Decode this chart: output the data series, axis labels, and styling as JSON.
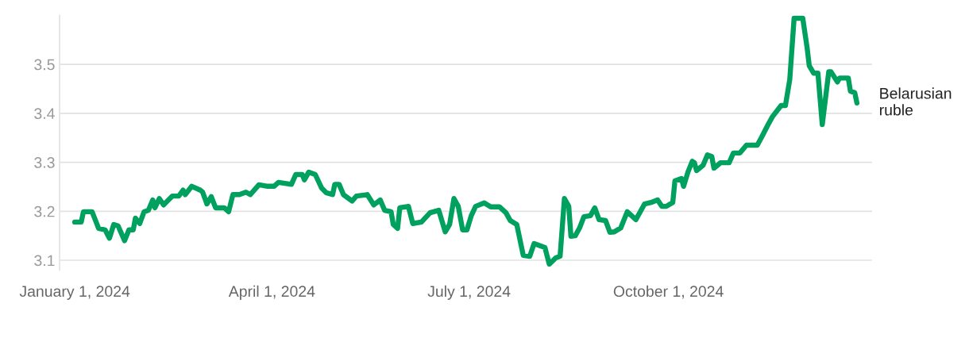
{
  "chart_data": {
    "type": "line",
    "xlim": [
      "2023-12-25",
      "2025-01-03"
    ],
    "xticks": [
      {
        "value": "2024-01-01",
        "label": "January 1, 2024"
      },
      {
        "value": "2024-04-01",
        "label": "April 1, 2024"
      },
      {
        "value": "2024-07-01",
        "label": "July 1, 2024"
      },
      {
        "value": "2024-10-01",
        "label": "October 1, 2024"
      }
    ],
    "ylim": [
      3.08,
      3.6
    ],
    "yticks": [
      3.1,
      3.2,
      3.3,
      3.4,
      3.5
    ],
    "grid": "y",
    "legend": false,
    "line_style": "solid",
    "marker": "none",
    "series": [
      {
        "name": "Belarusian ruble",
        "color": "#00a05e",
        "x": [
          "2024-01-01",
          "2024-01-04",
          "2024-01-05",
          "2024-01-09",
          "2024-01-12",
          "2024-01-15",
          "2024-01-17",
          "2024-01-19",
          "2024-01-21",
          "2024-01-24",
          "2024-01-26",
          "2024-01-28",
          "2024-01-29",
          "2024-01-31",
          "2024-02-02",
          "2024-02-04",
          "2024-02-06",
          "2024-02-07",
          "2024-02-09",
          "2024-02-11",
          "2024-02-15",
          "2024-02-18",
          "2024-02-20",
          "2024-02-21",
          "2024-02-24",
          "2024-02-28",
          "2024-02-29",
          "2024-03-02",
          "2024-03-04",
          "2024-03-06",
          "2024-03-10",
          "2024-03-12",
          "2024-03-14",
          "2024-03-17",
          "2024-03-20",
          "2024-03-22",
          "2024-03-26",
          "2024-03-30",
          "2024-04-02",
          "2024-04-04",
          "2024-04-10",
          "2024-04-12",
          "2024-04-15",
          "2024-04-16",
          "2024-04-18",
          "2024-04-21",
          "2024-04-24",
          "2024-04-26",
          "2024-04-29",
          "2024-04-30",
          "2024-05-02",
          "2024-05-04",
          "2024-05-08",
          "2024-05-10",
          "2024-05-15",
          "2024-05-18",
          "2024-05-21",
          "2024-05-23",
          "2024-05-26",
          "2024-05-27",
          "2024-05-29",
          "2024-05-30",
          "2024-06-03",
          "2024-06-05",
          "2024-06-09",
          "2024-06-13",
          "2024-06-17",
          "2024-06-20",
          "2024-06-22",
          "2024-06-24",
          "2024-06-26",
          "2024-06-28",
          "2024-06-30",
          "2024-07-02",
          "2024-07-04",
          "2024-07-08",
          "2024-07-11",
          "2024-07-15",
          "2024-07-18",
          "2024-07-20",
          "2024-07-23",
          "2024-07-26",
          "2024-07-29",
          "2024-07-31",
          "2024-08-05",
          "2024-08-07",
          "2024-08-10",
          "2024-08-12",
          "2024-08-14",
          "2024-08-16",
          "2024-08-17",
          "2024-08-19",
          "2024-08-21",
          "2024-08-23",
          "2024-08-26",
          "2024-08-28",
          "2024-08-30",
          "2024-09-02",
          "2024-09-04",
          "2024-09-06",
          "2024-09-09",
          "2024-09-12",
          "2024-09-16",
          "2024-09-20",
          "2024-09-23",
          "2024-09-26",
          "2024-09-28",
          "2024-09-30",
          "2024-10-03",
          "2024-10-04",
          "2024-10-07",
          "2024-10-08",
          "2024-10-10",
          "2024-10-12",
          "2024-10-13",
          "2024-10-14",
          "2024-10-17",
          "2024-10-19",
          "2024-10-21",
          "2024-10-22",
          "2024-10-25",
          "2024-10-29",
          "2024-10-31",
          "2024-11-03",
          "2024-11-06",
          "2024-11-11",
          "2024-11-13",
          "2024-11-16",
          "2024-11-18",
          "2024-11-22",
          "2024-11-24",
          "2024-11-26",
          "2024-11-28",
          "2024-12-02",
          "2024-12-04",
          "2024-12-05",
          "2024-12-07",
          "2024-12-09",
          "2024-12-11",
          "2024-12-14",
          "2024-12-15",
          "2024-12-18",
          "2024-12-19",
          "2024-12-23",
          "2024-12-24",
          "2024-12-26",
          "2024-12-27"
        ],
        "values": [
          3.178,
          3.178,
          3.199,
          3.199,
          3.165,
          3.162,
          3.145,
          3.173,
          3.17,
          3.14,
          3.162,
          3.162,
          3.186,
          3.175,
          3.199,
          3.202,
          3.223,
          3.207,
          3.226,
          3.213,
          3.231,
          3.231,
          3.243,
          3.234,
          3.251,
          3.243,
          3.239,
          3.215,
          3.23,
          3.207,
          3.207,
          3.199,
          3.234,
          3.234,
          3.239,
          3.234,
          3.254,
          3.251,
          3.251,
          3.259,
          3.255,
          3.275,
          3.275,
          3.264,
          3.28,
          3.275,
          3.247,
          3.238,
          3.234,
          3.255,
          3.255,
          3.234,
          3.221,
          3.231,
          3.234,
          3.213,
          3.223,
          3.202,
          3.199,
          3.173,
          3.165,
          3.207,
          3.21,
          3.175,
          3.178,
          3.197,
          3.202,
          3.158,
          3.173,
          3.226,
          3.21,
          3.162,
          3.162,
          3.191,
          3.21,
          3.217,
          3.209,
          3.209,
          3.197,
          3.181,
          3.173,
          3.11,
          3.108,
          3.134,
          3.126,
          3.092,
          3.105,
          3.108,
          3.226,
          3.21,
          3.149,
          3.15,
          3.166,
          3.189,
          3.191,
          3.207,
          3.183,
          3.181,
          3.157,
          3.158,
          3.166,
          3.199,
          3.183,
          3.215,
          3.218,
          3.223,
          3.21,
          3.21,
          3.218,
          3.262,
          3.267,
          3.251,
          3.28,
          3.302,
          3.299,
          3.283,
          3.294,
          3.315,
          3.312,
          3.288,
          3.299,
          3.299,
          3.319,
          3.319,
          3.335,
          3.335,
          3.351,
          3.377,
          3.393,
          3.416,
          3.416,
          3.469,
          3.594,
          3.594,
          3.534,
          3.497,
          3.482,
          3.482,
          3.377,
          3.485,
          3.485,
          3.464,
          3.472,
          3.472,
          3.445,
          3.442,
          3.421
        ]
      }
    ]
  }
}
